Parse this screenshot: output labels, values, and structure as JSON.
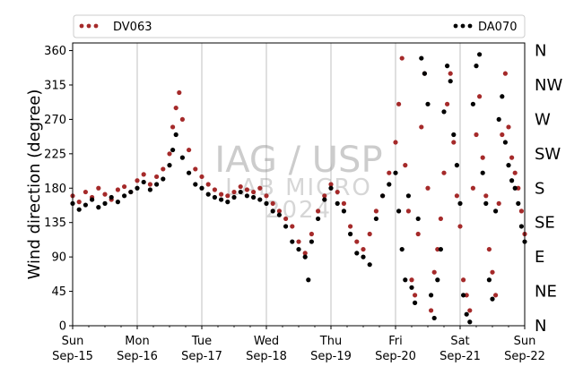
{
  "chart_data": {
    "type": "scatter",
    "title": "",
    "xlabel": "",
    "ylabel": "Wind direction (degree)",
    "ylim": [
      0,
      370
    ],
    "yticks": [
      0,
      45,
      90,
      135,
      180,
      225,
      270,
      315,
      360
    ],
    "xlim": [
      0,
      7
    ],
    "x_unit": "days since Sun Sep-15 00:00",
    "xticks": [
      {
        "day": "Sun",
        "date": "Sep-15"
      },
      {
        "day": "Mon",
        "date": "Sep-16"
      },
      {
        "day": "Tue",
        "date": "Sep-17"
      },
      {
        "day": "Wed",
        "date": "Sep-18"
      },
      {
        "day": "Thu",
        "date": "Sep-19"
      },
      {
        "day": "Fri",
        "date": "Sep-20"
      },
      {
        "day": "Sat",
        "date": "Sep-21"
      },
      {
        "day": "Sun",
        "date": "Sep-22"
      }
    ],
    "compass_labels": [
      "N",
      "NE",
      "E",
      "SE",
      "S",
      "SW",
      "W",
      "NW",
      "N"
    ],
    "grid": "vertical",
    "legend_position": "top",
    "watermark": {
      "line1": "IAG / USP",
      "line2": "LAB MICRO",
      "line3": "2024"
    },
    "series": [
      {
        "name": "DV063",
        "color": "#a52a2a",
        "points": [
          [
            0.0,
            170
          ],
          [
            0.1,
            162
          ],
          [
            0.2,
            175
          ],
          [
            0.3,
            168
          ],
          [
            0.4,
            180
          ],
          [
            0.5,
            172
          ],
          [
            0.6,
            165
          ],
          [
            0.7,
            178
          ],
          [
            0.8,
            182
          ],
          [
            0.9,
            175
          ],
          [
            1.0,
            190
          ],
          [
            1.1,
            198
          ],
          [
            1.2,
            185
          ],
          [
            1.3,
            195
          ],
          [
            1.4,
            205
          ],
          [
            1.5,
            225
          ],
          [
            1.55,
            260
          ],
          [
            1.6,
            285
          ],
          [
            1.65,
            305
          ],
          [
            1.7,
            270
          ],
          [
            1.8,
            230
          ],
          [
            1.9,
            205
          ],
          [
            2.0,
            195
          ],
          [
            2.1,
            185
          ],
          [
            2.2,
            178
          ],
          [
            2.3,
            172
          ],
          [
            2.4,
            170
          ],
          [
            2.5,
            175
          ],
          [
            2.6,
            182
          ],
          [
            2.7,
            178
          ],
          [
            2.8,
            175
          ],
          [
            2.9,
            180
          ],
          [
            3.0,
            170
          ],
          [
            3.1,
            160
          ],
          [
            3.2,
            150
          ],
          [
            3.3,
            140
          ],
          [
            3.4,
            130
          ],
          [
            3.5,
            110
          ],
          [
            3.6,
            95
          ],
          [
            3.7,
            120
          ],
          [
            3.8,
            150
          ],
          [
            3.9,
            170
          ],
          [
            4.0,
            185
          ],
          [
            4.1,
            175
          ],
          [
            4.2,
            160
          ],
          [
            4.3,
            130
          ],
          [
            4.4,
            110
          ],
          [
            4.5,
            100
          ],
          [
            4.6,
            120
          ],
          [
            4.7,
            150
          ],
          [
            4.8,
            170
          ],
          [
            4.9,
            200
          ],
          [
            5.0,
            240
          ],
          [
            5.05,
            290
          ],
          [
            5.1,
            350
          ],
          [
            5.15,
            210
          ],
          [
            5.2,
            150
          ],
          [
            5.25,
            60
          ],
          [
            5.3,
            40
          ],
          [
            5.35,
            120
          ],
          [
            5.4,
            260
          ],
          [
            5.45,
            330
          ],
          [
            5.5,
            180
          ],
          [
            5.55,
            20
          ],
          [
            5.6,
            70
          ],
          [
            5.65,
            100
          ],
          [
            5.7,
            140
          ],
          [
            5.75,
            200
          ],
          [
            5.8,
            290
          ],
          [
            5.85,
            330
          ],
          [
            5.9,
            240
          ],
          [
            5.95,
            170
          ],
          [
            6.0,
            130
          ],
          [
            6.05,
            60
          ],
          [
            6.1,
            40
          ],
          [
            6.15,
            20
          ],
          [
            6.2,
            180
          ],
          [
            6.25,
            250
          ],
          [
            6.3,
            300
          ],
          [
            6.35,
            220
          ],
          [
            6.4,
            170
          ],
          [
            6.45,
            100
          ],
          [
            6.5,
            70
          ],
          [
            6.55,
            40
          ],
          [
            6.6,
            160
          ],
          [
            6.65,
            250
          ],
          [
            6.7,
            330
          ],
          [
            6.75,
            260
          ],
          [
            6.8,
            220
          ],
          [
            6.85,
            200
          ],
          [
            6.9,
            180
          ],
          [
            6.95,
            150
          ],
          [
            7.0,
            120
          ]
        ]
      },
      {
        "name": "DA070",
        "color": "#000000",
        "points": [
          [
            0.0,
            160
          ],
          [
            0.1,
            152
          ],
          [
            0.2,
            158
          ],
          [
            0.3,
            165
          ],
          [
            0.4,
            155
          ],
          [
            0.5,
            160
          ],
          [
            0.6,
            168
          ],
          [
            0.7,
            162
          ],
          [
            0.8,
            170
          ],
          [
            0.9,
            175
          ],
          [
            1.0,
            180
          ],
          [
            1.1,
            188
          ],
          [
            1.2,
            178
          ],
          [
            1.3,
            185
          ],
          [
            1.4,
            192
          ],
          [
            1.5,
            210
          ],
          [
            1.55,
            230
          ],
          [
            1.6,
            250
          ],
          [
            1.7,
            220
          ],
          [
            1.8,
            200
          ],
          [
            1.9,
            185
          ],
          [
            2.0,
            180
          ],
          [
            2.1,
            172
          ],
          [
            2.2,
            168
          ],
          [
            2.3,
            165
          ],
          [
            2.4,
            162
          ],
          [
            2.5,
            168
          ],
          [
            2.6,
            175
          ],
          [
            2.7,
            170
          ],
          [
            2.8,
            168
          ],
          [
            2.9,
            165
          ],
          [
            3.0,
            160
          ],
          [
            3.1,
            150
          ],
          [
            3.2,
            145
          ],
          [
            3.3,
            130
          ],
          [
            3.4,
            110
          ],
          [
            3.5,
            100
          ],
          [
            3.6,
            90
          ],
          [
            3.65,
            60
          ],
          [
            3.7,
            110
          ],
          [
            3.8,
            140
          ],
          [
            3.9,
            165
          ],
          [
            4.0,
            180
          ],
          [
            4.1,
            160
          ],
          [
            4.2,
            150
          ],
          [
            4.3,
            120
          ],
          [
            4.4,
            95
          ],
          [
            4.5,
            90
          ],
          [
            4.6,
            80
          ],
          [
            4.7,
            140
          ],
          [
            4.8,
            170
          ],
          [
            4.9,
            185
          ],
          [
            5.0,
            200
          ],
          [
            5.05,
            150
          ],
          [
            5.1,
            100
          ],
          [
            5.15,
            60
          ],
          [
            5.2,
            170
          ],
          [
            5.25,
            50
          ],
          [
            5.3,
            30
          ],
          [
            5.35,
            140
          ],
          [
            5.4,
            350
          ],
          [
            5.45,
            330
          ],
          [
            5.5,
            290
          ],
          [
            5.55,
            40
          ],
          [
            5.6,
            10
          ],
          [
            5.65,
            60
          ],
          [
            5.7,
            100
          ],
          [
            5.75,
            280
          ],
          [
            5.8,
            340
          ],
          [
            5.85,
            320
          ],
          [
            5.9,
            250
          ],
          [
            5.95,
            210
          ],
          [
            6.0,
            160
          ],
          [
            6.05,
            40
          ],
          [
            6.1,
            15
          ],
          [
            6.15,
            5
          ],
          [
            6.2,
            290
          ],
          [
            6.25,
            340
          ],
          [
            6.3,
            355
          ],
          [
            6.35,
            200
          ],
          [
            6.4,
            160
          ],
          [
            6.45,
            60
          ],
          [
            6.5,
            35
          ],
          [
            6.55,
            150
          ],
          [
            6.6,
            270
          ],
          [
            6.65,
            300
          ],
          [
            6.7,
            240
          ],
          [
            6.75,
            210
          ],
          [
            6.8,
            190
          ],
          [
            6.85,
            180
          ],
          [
            6.9,
            160
          ],
          [
            6.95,
            130
          ],
          [
            7.0,
            110
          ]
        ]
      }
    ]
  }
}
